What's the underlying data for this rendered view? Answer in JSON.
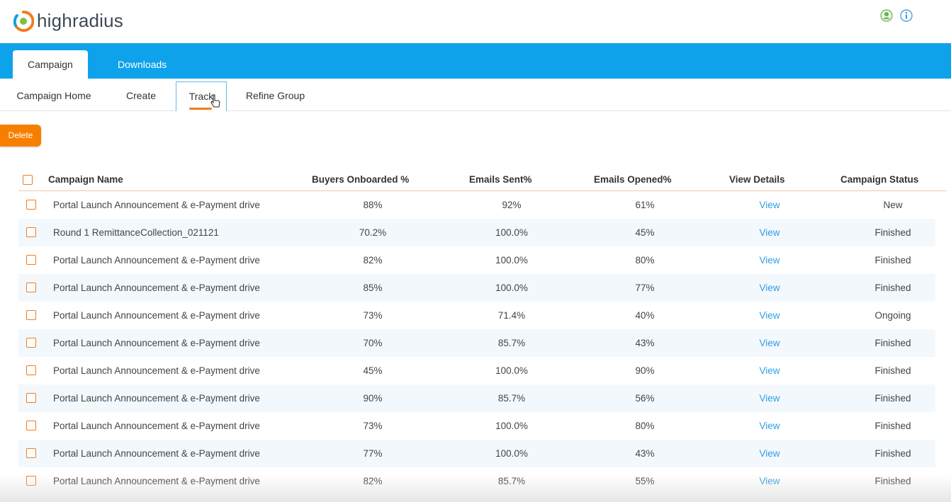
{
  "brand": {
    "name": "highradius"
  },
  "top_icons": [
    "user-icon",
    "info-icon"
  ],
  "main_tabs": [
    {
      "label": "Campaign",
      "active": true
    },
    {
      "label": "Downloads",
      "active": false
    }
  ],
  "sub_nav": [
    {
      "label": "Campaign Home",
      "active": false
    },
    {
      "label": "Create",
      "active": false
    },
    {
      "label": "Track",
      "active": true
    },
    {
      "label": "Refine Group",
      "active": false
    }
  ],
  "actions": {
    "delete_label": "Delete"
  },
  "table": {
    "headers": [
      "Campaign Name",
      "Buyers Onboarded %",
      "Emails Sent%",
      "Emails Opened%",
      "View Details",
      "Campaign Status"
    ],
    "rows": [
      {
        "name": "Portal Launch Announcement & e-Payment drive",
        "buyers": "88%",
        "sent": "92%",
        "opened": "61%",
        "view": "View",
        "status": "New"
      },
      {
        "name": "Round 1 RemittanceCollection_021121",
        "buyers": "70.2%",
        "sent": "100.0%",
        "opened": "45%",
        "view": "View",
        "status": "Finished"
      },
      {
        "name": "Portal Launch Announcement & e-Payment drive",
        "buyers": "82%",
        "sent": "100.0%",
        "opened": "80%",
        "view": "View",
        "status": "Finished"
      },
      {
        "name": "Portal Launch Announcement & e-Payment drive",
        "buyers": "85%",
        "sent": "100.0%",
        "opened": "77%",
        "view": "View",
        "status": "Finished"
      },
      {
        "name": "Portal Launch Announcement & e-Payment drive",
        "buyers": "73%",
        "sent": "71.4%",
        "opened": "40%",
        "view": "View",
        "status": "Ongoing"
      },
      {
        "name": "Portal Launch Announcement & e-Payment drive",
        "buyers": "70%",
        "sent": "85.7%",
        "opened": "43%",
        "view": "View",
        "status": "Finished"
      },
      {
        "name": "Portal Launch Announcement & e-Payment drive",
        "buyers": "45%",
        "sent": "100.0%",
        "opened": "90%",
        "view": "View",
        "status": "Finished"
      },
      {
        "name": "Portal Launch Announcement & e-Payment drive",
        "buyers": "90%",
        "sent": "85.7%",
        "opened": "56%",
        "view": "View",
        "status": "Finished"
      },
      {
        "name": "Portal Launch Announcement & e-Payment drive",
        "buyers": "73%",
        "sent": "100.0%",
        "opened": "80%",
        "view": "View",
        "status": "Finished"
      },
      {
        "name": "Portal Launch Announcement & e-Payment drive",
        "buyers": "77%",
        "sent": "100.0%",
        "opened": "43%",
        "view": "View",
        "status": "Finished"
      },
      {
        "name": "Portal Launch Announcement & e-Payment drive",
        "buyers": "82%",
        "sent": "85.7%",
        "opened": "55%",
        "view": "View",
        "status": "Finished"
      }
    ]
  },
  "colors": {
    "accent_blue": "#0ea2ea",
    "accent_orange": "#f07c1e",
    "link": "#2f9fe0",
    "row_alt": "#f3f8fd"
  }
}
